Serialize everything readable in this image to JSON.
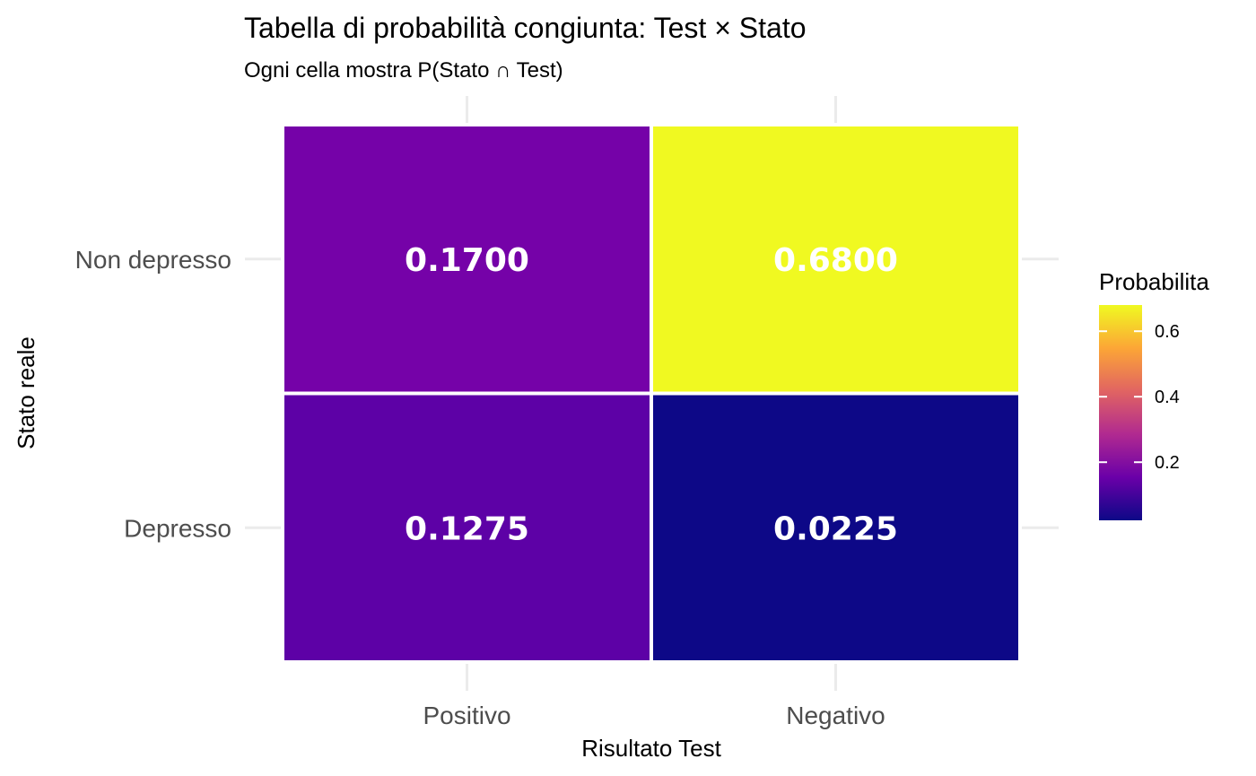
{
  "chart_data": {
    "type": "heatmap",
    "title": "Tabella di probabilità congiunta: Test × Stato",
    "subtitle": "Ogni cella mostra P(Stato ∩ Test)",
    "xlabel": "Risultato Test",
    "ylabel": "Stato reale",
    "x_categories": [
      "Positivo",
      "Negativo"
    ],
    "y_categories": [
      "Non depresso",
      "Depresso"
    ],
    "cells": [
      {
        "x": "Positivo",
        "y": "Non depresso",
        "value": 0.17,
        "label": "0.1700",
        "color": "#7502a8"
      },
      {
        "x": "Negativo",
        "y": "Non depresso",
        "value": 0.68,
        "label": "0.6800",
        "color": "#f0f921"
      },
      {
        "x": "Positivo",
        "y": "Depresso",
        "value": 0.1275,
        "label": "0.1275",
        "color": "#5d01a6"
      },
      {
        "x": "Negativo",
        "y": "Depresso",
        "value": 0.0225,
        "label": "0.0225",
        "color": "#0d0887"
      }
    ],
    "legend": {
      "title": "Probabilita",
      "placement": "right",
      "min": 0.0225,
      "max": 0.68,
      "ticks": [
        {
          "value": 0.2,
          "label": "0.2"
        },
        {
          "value": 0.4,
          "label": "0.4"
        },
        {
          "value": 0.6,
          "label": "0.6"
        }
      ],
      "colors": [
        "#0d0887",
        "#6a00a8",
        "#b12a90",
        "#e16462",
        "#fca636",
        "#f0f921"
      ]
    },
    "grid": true
  }
}
